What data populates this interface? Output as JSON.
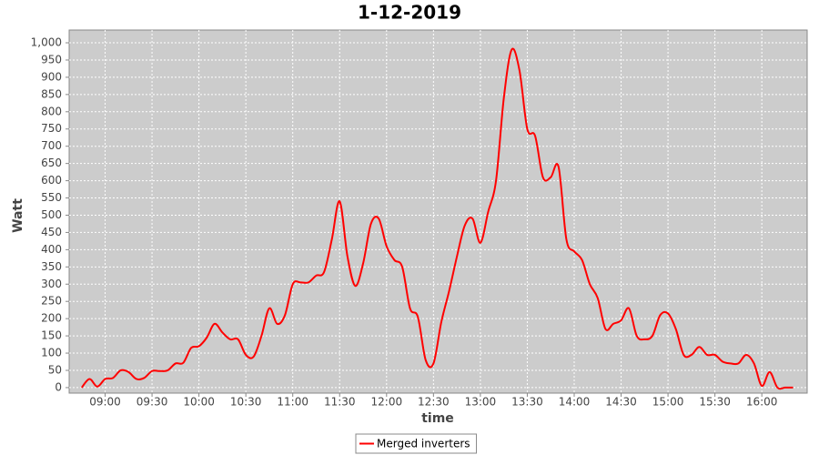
{
  "chart_data": {
    "type": "line",
    "title": "1-12-2019",
    "x_label": "time",
    "y_label": "Watt",
    "x": [
      "08:45",
      "08:50",
      "08:55",
      "09:00",
      "09:05",
      "09:10",
      "09:15",
      "09:20",
      "09:25",
      "09:30",
      "09:35",
      "09:40",
      "09:45",
      "09:50",
      "09:55",
      "10:00",
      "10:05",
      "10:10",
      "10:15",
      "10:20",
      "10:25",
      "10:30",
      "10:35",
      "10:40",
      "10:45",
      "10:50",
      "10:55",
      "11:00",
      "11:05",
      "11:10",
      "11:15",
      "11:20",
      "11:25",
      "11:30",
      "11:35",
      "11:40",
      "11:45",
      "11:50",
      "11:55",
      "12:00",
      "12:05",
      "12:10",
      "12:15",
      "12:20",
      "12:25",
      "12:30",
      "12:35",
      "12:40",
      "12:45",
      "12:50",
      "12:55",
      "13:00",
      "13:05",
      "13:10",
      "13:15",
      "13:20",
      "13:25",
      "13:30",
      "13:35",
      "13:40",
      "13:45",
      "13:50",
      "13:55",
      "14:00",
      "14:05",
      "14:10",
      "14:15",
      "14:20",
      "14:25",
      "14:30",
      "14:35",
      "14:40",
      "14:45",
      "14:50",
      "14:55",
      "15:00",
      "15:05",
      "15:10",
      "15:15",
      "15:20",
      "15:25",
      "15:30",
      "15:35",
      "15:40",
      "15:45",
      "15:50",
      "15:55",
      "16:00",
      "16:05",
      "16:10",
      "16:15",
      "16:20"
    ],
    "series": [
      {
        "name": "Merged inverters",
        "color": "#ff0000",
        "values": [
          0,
          25,
          3,
          25,
          28,
          50,
          45,
          25,
          28,
          48,
          48,
          50,
          70,
          72,
          115,
          120,
          145,
          185,
          160,
          140,
          140,
          95,
          90,
          150,
          230,
          185,
          210,
          300,
          305,
          305,
          325,
          335,
          430,
          540,
          380,
          295,
          360,
          475,
          490,
          410,
          370,
          350,
          230,
          205,
          80,
          70,
          190,
          280,
          380,
          470,
          490,
          420,
          510,
          600,
          840,
          980,
          920,
          750,
          730,
          610,
          610,
          640,
          430,
          395,
          370,
          300,
          260,
          170,
          185,
          195,
          230,
          150,
          140,
          150,
          210,
          215,
          170,
          95,
          95,
          118,
          95,
          95,
          75,
          70,
          70,
          95,
          70,
          5,
          45,
          0,
          0,
          0
        ]
      }
    ],
    "xlim": [
      "08:37",
      "16:29"
    ],
    "xticks": [
      "09:00",
      "09:30",
      "10:00",
      "10:30",
      "11:00",
      "11:30",
      "12:00",
      "12:30",
      "13:00",
      "13:30",
      "14:00",
      "14:30",
      "15:00",
      "15:30",
      "16:00"
    ],
    "ylim": [
      -16,
      1037
    ],
    "yticks": [
      0,
      50,
      100,
      150,
      200,
      250,
      300,
      350,
      400,
      450,
      500,
      550,
      600,
      650,
      700,
      750,
      800,
      850,
      900,
      950,
      {
        "value": 1000,
        "label": "1,000"
      }
    ],
    "grid": true,
    "legend": "bottom"
  }
}
